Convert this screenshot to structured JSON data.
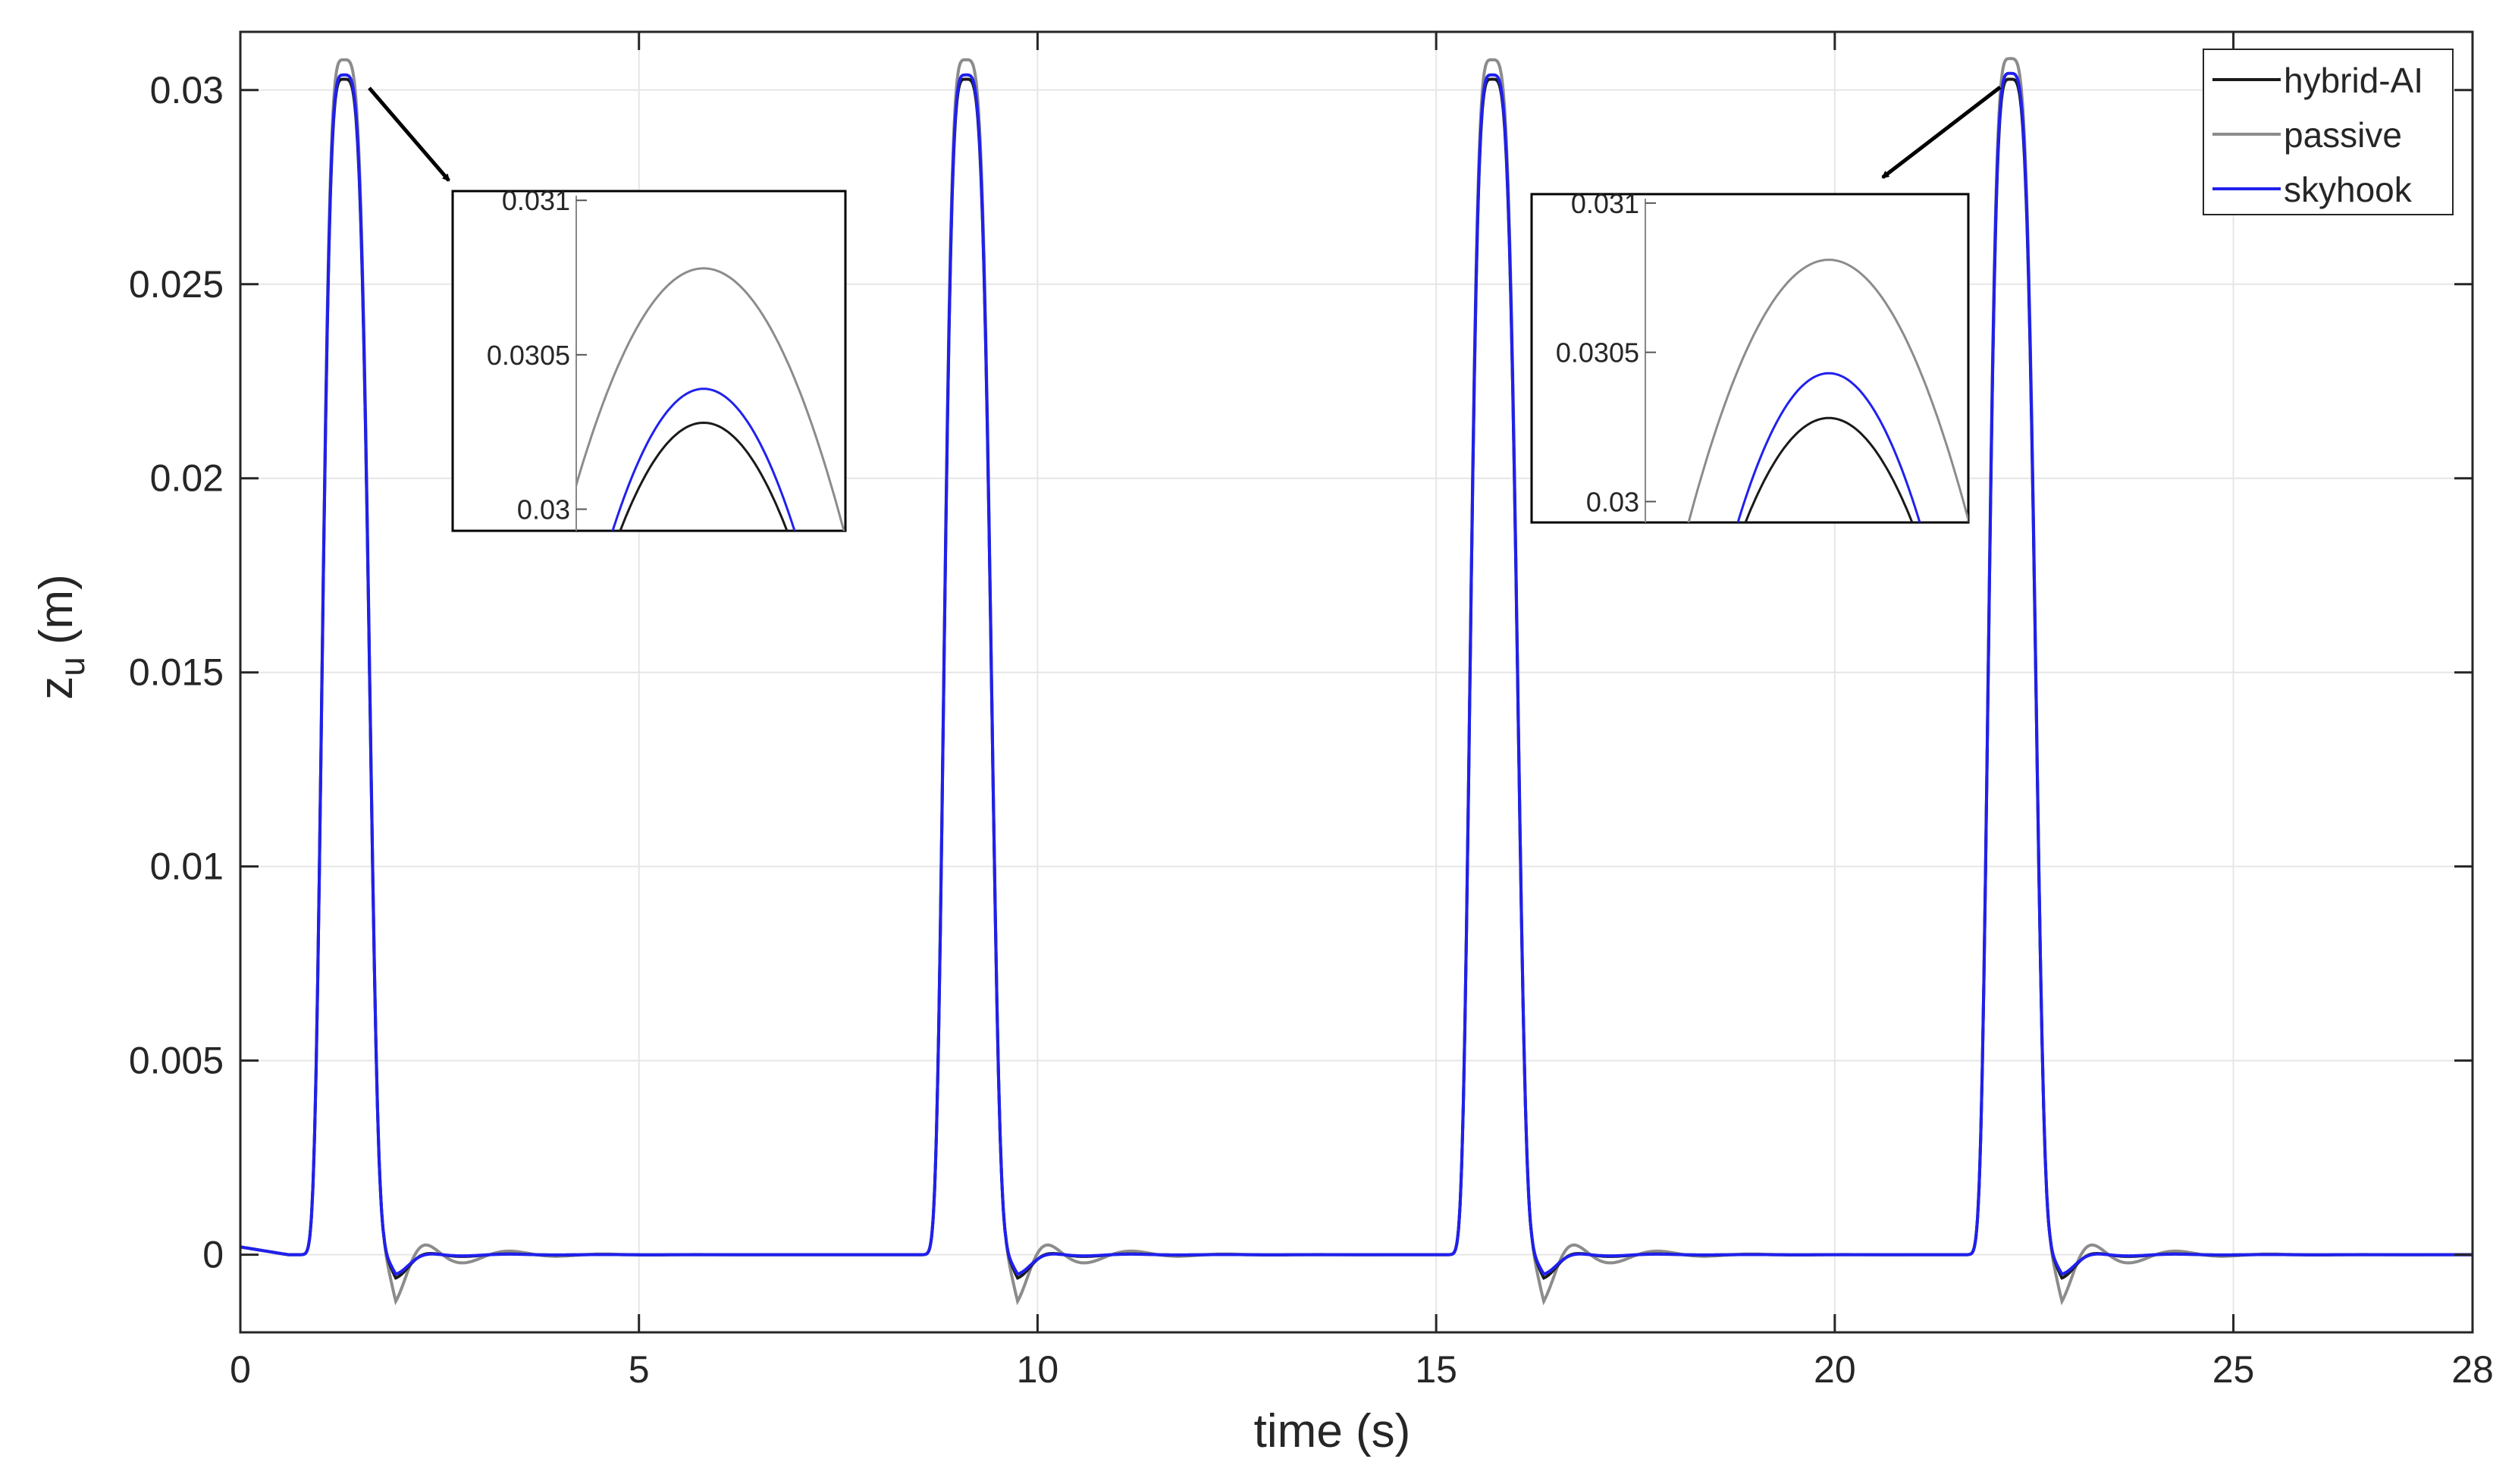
{
  "chart_data": {
    "type": "line",
    "xlabel": "time (s)",
    "ylabel_main": "z",
    "ylabel_sub": "u",
    "ylabel_unit": "(m)",
    "xlim": [
      0,
      28
    ],
    "ylim": [
      -0.002,
      0.0315
    ],
    "xticks": [
      0,
      5,
      10,
      15,
      20,
      25,
      28
    ],
    "xtick_labels": [
      "0",
      "5",
      "10",
      "15",
      "20",
      "25",
      "28"
    ],
    "yticks": [
      0,
      0.005,
      0.01,
      0.015,
      0.02,
      0.025,
      0.03
    ],
    "ytick_labels": [
      "0",
      "0.005",
      "0.01",
      "0.015",
      "0.02",
      "0.025",
      "0.03"
    ],
    "grid": true,
    "legend_position": "top-right",
    "series": [
      {
        "name": "hybrid-AI",
        "color": "#1a1a1a",
        "peak_times": [
          1.3,
          9.1,
          15.7,
          22.2
        ],
        "peak_values": [
          0.03028,
          0.03028,
          0.03028,
          0.03028
        ],
        "undershoot": -0.0006,
        "oscillation_amplitude": 0.00015
      },
      {
        "name": "passive",
        "color": "#8c8c8c",
        "peak_times": [
          1.3,
          9.1,
          15.7,
          22.2
        ],
        "peak_values": [
          0.03078,
          0.03078,
          0.03078,
          0.03081
        ],
        "undershoot": -0.0012,
        "oscillation_amplitude": 0.0007
      },
      {
        "name": "skyhook",
        "color": "#2020ee",
        "peak_times": [
          1.3,
          9.1,
          15.7,
          22.2
        ],
        "peak_values": [
          0.03039,
          0.03039,
          0.03039,
          0.03043
        ],
        "undershoot": -0.0005,
        "oscillation_amplitude": 0.0001
      }
    ],
    "insets": [
      {
        "ylim": [
          0.02993,
          0.03103
        ],
        "yticks": [
          0.03,
          0.0305,
          0.031
        ],
        "ytick_labels": [
          "0.03",
          "0.0305",
          "0.031"
        ],
        "series_peaks": [
          0.03028,
          0.03078,
          0.03039
        ]
      },
      {
        "ylim": [
          0.02993,
          0.03103
        ],
        "yticks": [
          0.03,
          0.0305,
          0.031
        ],
        "ytick_labels": [
          "0.03",
          "0.0305",
          "0.031"
        ],
        "series_peaks": [
          0.03028,
          0.03081,
          0.03043
        ]
      }
    ]
  }
}
